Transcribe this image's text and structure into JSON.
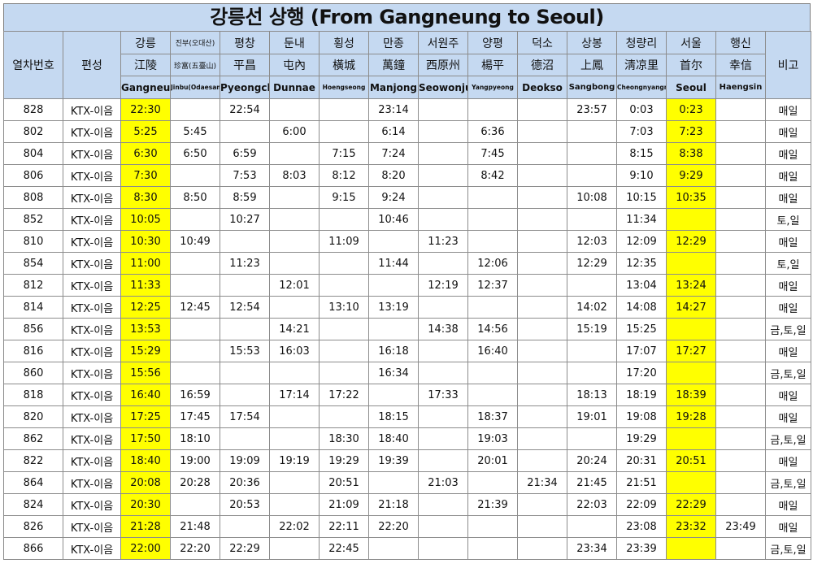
{
  "title": "강릉선 상행 (From Gangneung to Seoul)",
  "headers": {
    "train_no": "열차번호",
    "formation": "편성",
    "remarks": "비고"
  },
  "stations": [
    {
      "ko": "강릉",
      "hanja": "江陵",
      "en": "Gangneung"
    },
    {
      "ko": "진부(오대산)",
      "hanja": "珍富(五臺山)",
      "en": "Jinbu(Odaesan)"
    },
    {
      "ko": "평창",
      "hanja": "平昌",
      "en": "Pyeongchang"
    },
    {
      "ko": "둔내",
      "hanja": "屯內",
      "en": "Dunnae"
    },
    {
      "ko": "횡성",
      "hanja": "橫城",
      "en": "Hoengseong"
    },
    {
      "ko": "만종",
      "hanja": "萬鐘",
      "en": "Manjong"
    },
    {
      "ko": "서원주",
      "hanja": "西原州",
      "en": "Seowonju"
    },
    {
      "ko": "양평",
      "hanja": "楊平",
      "en": "Yangpyeong"
    },
    {
      "ko": "덕소",
      "hanja": "德沼",
      "en": "Deokso"
    },
    {
      "ko": "상봉",
      "hanja": "上鳳",
      "en": "Sangbong"
    },
    {
      "ko": "청량리",
      "hanja": "淸凉里",
      "en": "Cheongnyangni"
    },
    {
      "ko": "서울",
      "hanja": "首尔",
      "en": "Seoul"
    },
    {
      "ko": "행신",
      "hanja": "幸信",
      "en": "Haengsin"
    }
  ],
  "rows": [
    {
      "no": "828",
      "type": "KTX-이음",
      "t": [
        "22:30",
        "",
        "22:54",
        "",
        "",
        "23:14",
        "",
        "",
        "",
        "23:57",
        "0:03",
        "0:23",
        ""
      ],
      "note": "매일"
    },
    {
      "no": "802",
      "type": "KTX-이음",
      "t": [
        "5:25",
        "5:45",
        "",
        "6:00",
        "",
        "6:14",
        "",
        "6:36",
        "",
        "",
        "7:03",
        "7:23",
        ""
      ],
      "note": "매일"
    },
    {
      "no": "804",
      "type": "KTX-이음",
      "t": [
        "6:30",
        "6:50",
        "6:59",
        "",
        "7:15",
        "7:24",
        "",
        "7:45",
        "",
        "",
        "8:15",
        "8:38",
        ""
      ],
      "note": "매일"
    },
    {
      "no": "806",
      "type": "KTX-이음",
      "t": [
        "7:30",
        "",
        "7:53",
        "8:03",
        "8:12",
        "8:20",
        "",
        "8:42",
        "",
        "",
        "9:10",
        "9:29",
        ""
      ],
      "note": "매일"
    },
    {
      "no": "808",
      "type": "KTX-이음",
      "t": [
        "8:30",
        "8:50",
        "8:59",
        "",
        "9:15",
        "9:24",
        "",
        "",
        "",
        "10:08",
        "10:15",
        "10:35",
        ""
      ],
      "note": "매일"
    },
    {
      "no": "852",
      "type": "KTX-이음",
      "t": [
        "10:05",
        "",
        "10:27",
        "",
        "",
        "10:46",
        "",
        "",
        "",
        "",
        "11:34",
        "",
        ""
      ],
      "note": "토,일"
    },
    {
      "no": "810",
      "type": "KTX-이음",
      "t": [
        "10:30",
        "10:49",
        "",
        "",
        "11:09",
        "",
        "11:23",
        "",
        "",
        "12:03",
        "12:09",
        "12:29",
        ""
      ],
      "note": "매일"
    },
    {
      "no": "854",
      "type": "KTX-이음",
      "t": [
        "11:00",
        "",
        "11:23",
        "",
        "",
        "11:44",
        "",
        "12:06",
        "",
        "12:29",
        "12:35",
        "",
        ""
      ],
      "note": "토,일"
    },
    {
      "no": "812",
      "type": "KTX-이음",
      "t": [
        "11:33",
        "",
        "",
        "12:01",
        "",
        "",
        "12:19",
        "12:37",
        "",
        "",
        "13:04",
        "13:24",
        ""
      ],
      "note": "매일"
    },
    {
      "no": "814",
      "type": "KTX-이음",
      "t": [
        "12:25",
        "12:45",
        "12:54",
        "",
        "13:10",
        "13:19",
        "",
        "",
        "",
        "14:02",
        "14:08",
        "14:27",
        ""
      ],
      "note": "매일"
    },
    {
      "no": "856",
      "type": "KTX-이음",
      "t": [
        "13:53",
        "",
        "",
        "14:21",
        "",
        "",
        "14:38",
        "14:56",
        "",
        "15:19",
        "15:25",
        "",
        ""
      ],
      "note": "금,토,일"
    },
    {
      "no": "816",
      "type": "KTX-이음",
      "t": [
        "15:29",
        "",
        "15:53",
        "16:03",
        "",
        "16:18",
        "",
        "16:40",
        "",
        "",
        "17:07",
        "17:27",
        ""
      ],
      "note": "매일"
    },
    {
      "no": "860",
      "type": "KTX-이음",
      "t": [
        "15:56",
        "",
        "",
        "",
        "",
        "16:34",
        "",
        "",
        "",
        "",
        "17:20",
        "",
        ""
      ],
      "note": "금,토,일"
    },
    {
      "no": "818",
      "type": "KTX-이음",
      "t": [
        "16:40",
        "16:59",
        "",
        "17:14",
        "17:22",
        "",
        "17:33",
        "",
        "",
        "18:13",
        "18:19",
        "18:39",
        ""
      ],
      "note": "매일"
    },
    {
      "no": "820",
      "type": "KTX-이음",
      "t": [
        "17:25",
        "17:45",
        "17:54",
        "",
        "",
        "18:15",
        "",
        "18:37",
        "",
        "19:01",
        "19:08",
        "19:28",
        ""
      ],
      "note": "매일"
    },
    {
      "no": "862",
      "type": "KTX-이음",
      "t": [
        "17:50",
        "18:10",
        "",
        "",
        "18:30",
        "18:40",
        "",
        "19:03",
        "",
        "",
        "19:29",
        "",
        ""
      ],
      "note": "금,토,일"
    },
    {
      "no": "822",
      "type": "KTX-이음",
      "t": [
        "18:40",
        "19:00",
        "19:09",
        "19:19",
        "19:29",
        "19:39",
        "",
        "20:01",
        "",
        "20:24",
        "20:31",
        "20:51",
        ""
      ],
      "note": "매일"
    },
    {
      "no": "864",
      "type": "KTX-이음",
      "t": [
        "20:08",
        "20:28",
        "20:36",
        "",
        "20:51",
        "",
        "21:03",
        "",
        "21:34",
        "21:45",
        "21:51",
        "",
        ""
      ],
      "note": "금,토,일"
    },
    {
      "no": "824",
      "type": "KTX-이음",
      "t": [
        "20:30",
        "",
        "20:53",
        "",
        "21:09",
        "21:18",
        "",
        "21:39",
        "",
        "22:03",
        "22:09",
        "22:29",
        ""
      ],
      "note": "매일"
    },
    {
      "no": "826",
      "type": "KTX-이음",
      "t": [
        "21:28",
        "21:48",
        "",
        "22:02",
        "22:11",
        "22:20",
        "",
        "",
        "",
        "",
        "23:08",
        "23:32",
        "23:49"
      ],
      "note": "매일"
    },
    {
      "no": "866",
      "type": "KTX-이음",
      "t": [
        "22:00",
        "22:20",
        "22:29",
        "",
        "22:45",
        "",
        "",
        "",
        "",
        "23:34",
        "23:39",
        "",
        ""
      ],
      "note": "금,토,일"
    }
  ],
  "colors": {
    "header_bg": "#c5d9f1",
    "highlight": "#ffff00"
  }
}
